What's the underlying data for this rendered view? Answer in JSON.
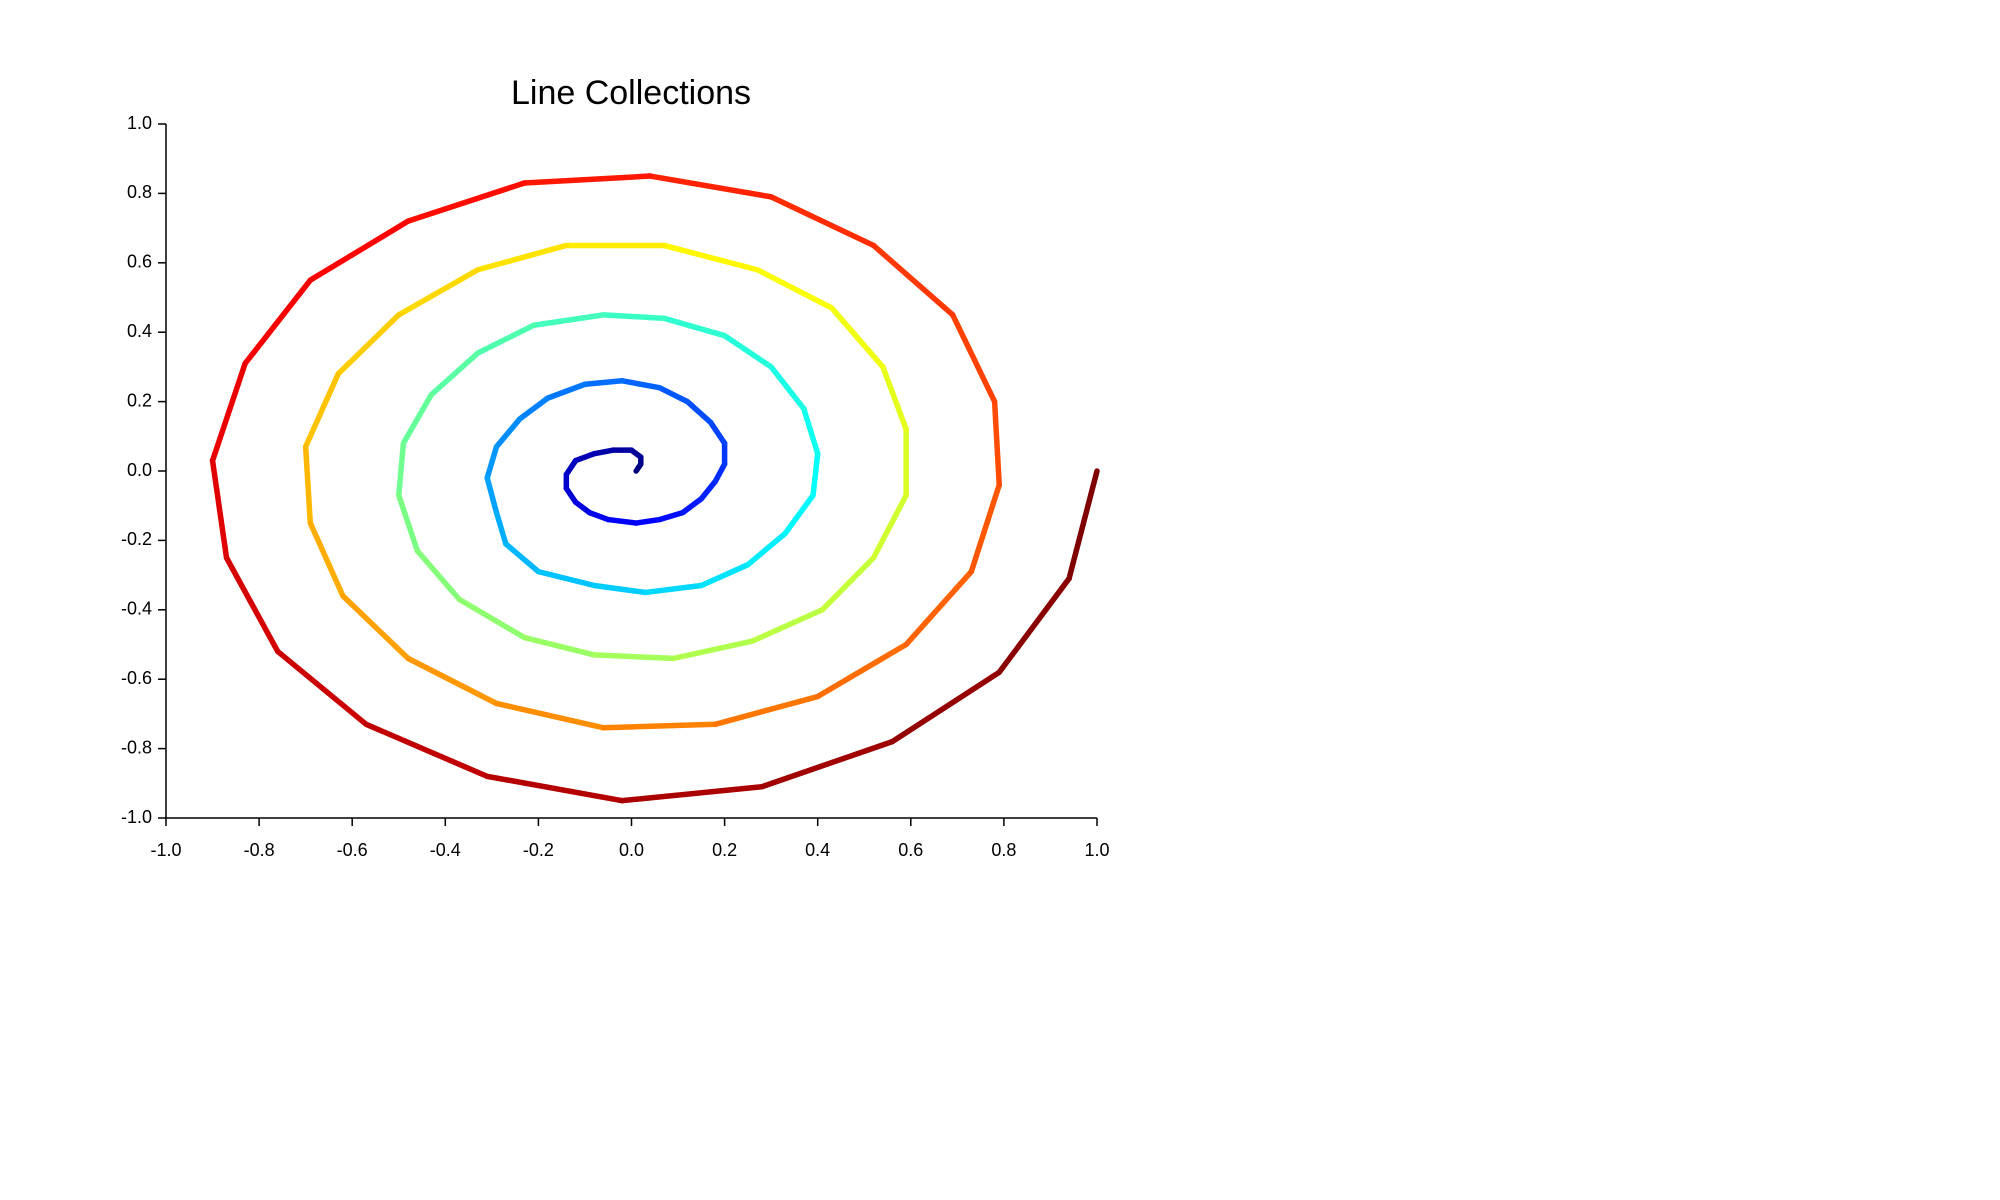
{
  "chart_data": {
    "type": "line",
    "title": "Line Collections",
    "colormap": "jet",
    "x": [
      0.01,
      0.02,
      0.02,
      0,
      -0.04,
      -0.08,
      -0.12,
      -0.14,
      -0.14,
      -0.12,
      -0.09,
      -0.05,
      0.01,
      0.06,
      0.11,
      0.15,
      0.18,
      0.2,
      0.2,
      0.17,
      0.12,
      0.06,
      -0.02,
      -0.1,
      -0.18,
      -0.24,
      -0.29,
      -0.31,
      -0.29,
      -0.27,
      -0.2,
      -0.08,
      0.03,
      0.15,
      0.25,
      0.33,
      0.39,
      0.4,
      0.37,
      0.3,
      0.2,
      0.07,
      -0.06,
      -0.21,
      -0.33,
      -0.43,
      -0.49,
      -0.5,
      -0.46,
      -0.37,
      -0.23,
      -0.08,
      0.09,
      0.26,
      0.41,
      0.52,
      0.59,
      0.59,
      0.54,
      0.43,
      0.27,
      0.07,
      -0.14,
      -0.33,
      -0.5,
      -0.63,
      -0.7,
      -0.69,
      -0.62,
      -0.48,
      -0.29,
      -0.06,
      0.18,
      0.4,
      0.59,
      0.73,
      0.79,
      0.78,
      0.69,
      0.52,
      0.3,
      0.04,
      -0.23,
      -0.48,
      -0.69,
      -0.83,
      -0.9,
      -0.87,
      -0.76,
      -0.57,
      -0.31,
      -0.02,
      0.28,
      0.56,
      0.79,
      0.94,
      1
    ],
    "values": [
      0,
      0.02,
      0.04,
      0.06,
      0.06,
      0.05,
      0.03,
      -0.01,
      -0.05,
      -0.09,
      -0.12,
      -0.14,
      -0.15,
      -0.14,
      -0.12,
      -0.08,
      -0.03,
      0.02,
      0.08,
      0.14,
      0.2,
      0.24,
      0.26,
      0.25,
      0.21,
      0.15,
      0.07,
      -0.02,
      -0.12,
      -0.21,
      -0.29,
      -0.33,
      -0.35,
      -0.33,
      -0.27,
      -0.18,
      -0.07,
      0.05,
      0.18,
      0.3,
      0.39,
      0.44,
      0.45,
      0.42,
      0.34,
      0.22,
      0.08,
      -0.07,
      -0.23,
      -0.37,
      -0.48,
      -0.53,
      -0.54,
      -0.49,
      -0.4,
      -0.25,
      -0.07,
      0.12,
      0.3,
      0.47,
      0.58,
      0.65,
      0.65,
      0.58,
      0.45,
      0.28,
      0.07,
      -0.15,
      -0.36,
      -0.54,
      -0.67,
      -0.74,
      -0.73,
      -0.65,
      -0.5,
      -0.29,
      -0.04,
      0.2,
      0.45,
      0.65,
      0.79,
      0.85,
      0.83,
      0.72,
      0.55,
      0.31,
      0.03,
      -0.25,
      -0.52,
      -0.73,
      -0.88,
      -0.95,
      -0.91,
      -0.78,
      -0.58,
      -0.31,
      0
    ],
    "xlim": [
      -1,
      1
    ],
    "ylim": [
      -1,
      1
    ],
    "xticks": [
      {
        "value": -1,
        "label": "-1.0"
      },
      -0.8,
      -0.6,
      -0.4,
      -0.2,
      {
        "value": 0,
        "label": "0.0"
      },
      0.2,
      0.4,
      0.6,
      0.8,
      {
        "value": 1,
        "label": "1.0"
      }
    ],
    "yticks": [
      {
        "value": -1,
        "label": "-1.0"
      },
      -0.8,
      -0.6,
      -0.4,
      -0.2,
      {
        "value": 0,
        "label": "0.0"
      },
      0.2,
      0.4,
      0.6,
      0.8,
      {
        "value": 1,
        "label": "1.0"
      }
    ]
  }
}
